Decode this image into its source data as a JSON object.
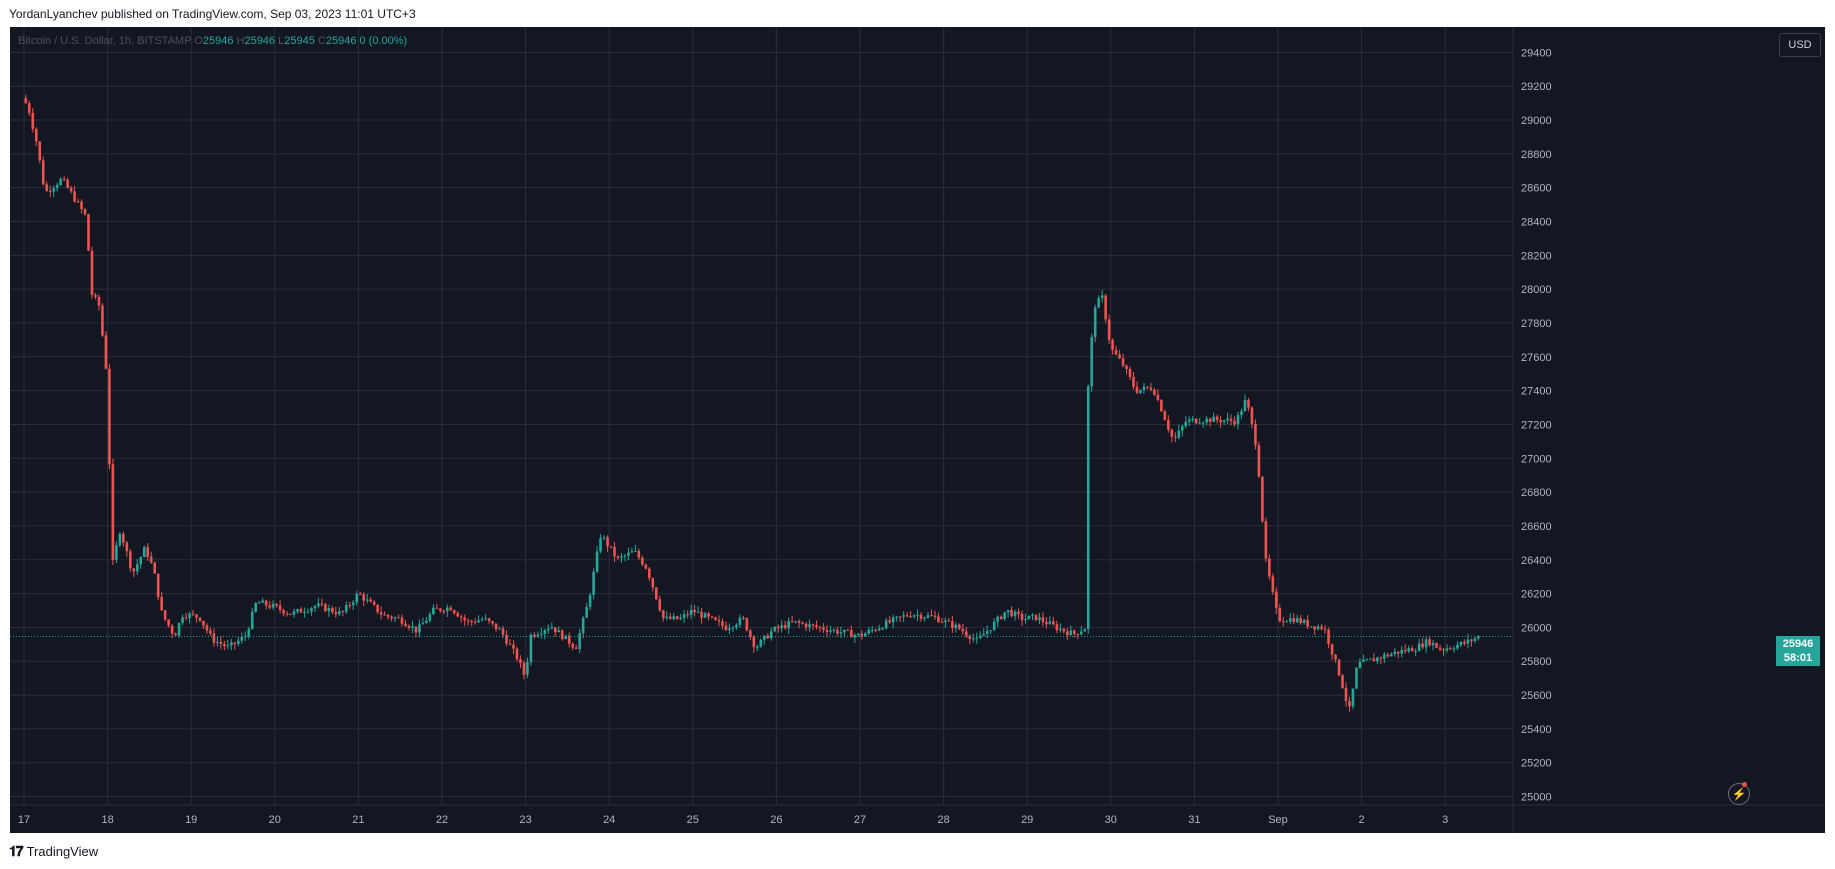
{
  "header": {
    "publish_line": "YordanLyanchev published on TradingView.com, Sep 03, 2023 11:01 UTC+3"
  },
  "legend": {
    "symbol": "Bitcoin / U.S. Dollar, 1h, BITSTAMP",
    "open_label": "O",
    "open": "25946",
    "high_label": "H",
    "high": "25946",
    "low_label": "L",
    "low": "25945",
    "close_label": "C",
    "close": "25946",
    "change": "0 (0.00%)"
  },
  "currency_button": "USD",
  "price_tag": {
    "price": "25946",
    "countdown": "58:01"
  },
  "footer": {
    "brand": "TradingView"
  },
  "colors": {
    "background": "#131722",
    "grid": "#2a2e39",
    "bull": "#26a69a",
    "bear": "#ef5350",
    "axis_text": "#b2b5be"
  },
  "chart_data": {
    "type": "candlestick",
    "title": "Bitcoin / U.S. Dollar, 1h, BITSTAMP",
    "xlabel": "",
    "ylabel": "",
    "ylim": [
      24950,
      29550
    ],
    "y_ticks": [
      25000,
      25200,
      25400,
      25600,
      25800,
      26000,
      26200,
      26400,
      26600,
      26800,
      27000,
      27200,
      27400,
      27600,
      27800,
      28000,
      28200,
      28400,
      28600,
      28800,
      29000,
      29200,
      29400
    ],
    "x_ticks": [
      "17",
      "18",
      "19",
      "20",
      "21",
      "22",
      "23",
      "24",
      "25",
      "26",
      "27",
      "28",
      "29",
      "30",
      "31",
      "Sep",
      "2",
      "3"
    ],
    "grid": true,
    "last_price": 25946,
    "price_path": [
      [
        16.98,
        29130
      ],
      [
        17.05,
        29080
      ],
      [
        17.15,
        28870
      ],
      [
        17.25,
        28570
      ],
      [
        17.45,
        28650
      ],
      [
        17.6,
        28540
      ],
      [
        17.75,
        28420
      ],
      [
        17.8,
        27980
      ],
      [
        17.9,
        27900
      ],
      [
        18.0,
        27450
      ],
      [
        18.05,
        26350
      ],
      [
        18.15,
        26580
      ],
      [
        18.3,
        26320
      ],
      [
        18.45,
        26470
      ],
      [
        18.55,
        26340
      ],
      [
        18.65,
        26080
      ],
      [
        18.8,
        25950
      ],
      [
        18.9,
        26080
      ],
      [
        19.1,
        26060
      ],
      [
        19.25,
        25930
      ],
      [
        19.45,
        25880
      ],
      [
        19.65,
        25950
      ],
      [
        19.78,
        26150
      ],
      [
        20.0,
        26120
      ],
      [
        20.2,
        26080
      ],
      [
        20.5,
        26130
      ],
      [
        20.8,
        26080
      ],
      [
        21.0,
        26200
      ],
      [
        21.3,
        26070
      ],
      [
        21.5,
        26050
      ],
      [
        21.7,
        25980
      ],
      [
        21.9,
        26100
      ],
      [
        22.1,
        26120
      ],
      [
        22.3,
        26030
      ],
      [
        22.5,
        26050
      ],
      [
        22.7,
        25980
      ],
      [
        22.9,
        25820
      ],
      [
        23.0,
        25700
      ],
      [
        23.05,
        25950
      ],
      [
        23.3,
        26010
      ],
      [
        23.6,
        25880
      ],
      [
        23.75,
        26150
      ],
      [
        23.9,
        26550
      ],
      [
        24.1,
        26400
      ],
      [
        24.3,
        26450
      ],
      [
        24.45,
        26350
      ],
      [
        24.65,
        26050
      ],
      [
        24.85,
        26050
      ],
      [
        25.0,
        26100
      ],
      [
        25.2,
        26050
      ],
      [
        25.4,
        26000
      ],
      [
        25.6,
        26050
      ],
      [
        25.75,
        25880
      ],
      [
        25.95,
        25980
      ],
      [
        26.2,
        26030
      ],
      [
        26.5,
        26000
      ],
      [
        26.8,
        25970
      ],
      [
        27.0,
        25950
      ],
      [
        27.3,
        26020
      ],
      [
        27.6,
        26080
      ],
      [
        27.9,
        26060
      ],
      [
        28.2,
        25990
      ],
      [
        28.4,
        25920
      ],
      [
        28.6,
        26020
      ],
      [
        28.75,
        26100
      ],
      [
        28.95,
        26050
      ],
      [
        29.1,
        26060
      ],
      [
        29.35,
        26000
      ],
      [
        29.55,
        25960
      ],
      [
        29.7,
        26000
      ],
      [
        29.72,
        27350
      ],
      [
        29.8,
        27900
      ],
      [
        29.9,
        27950
      ],
      [
        30.0,
        27650
      ],
      [
        30.15,
        27550
      ],
      [
        30.3,
        27400
      ],
      [
        30.5,
        27420
      ],
      [
        30.6,
        27300
      ],
      [
        30.75,
        27100
      ],
      [
        30.9,
        27220
      ],
      [
        31.2,
        27230
      ],
      [
        31.5,
        27220
      ],
      [
        31.62,
        27350
      ],
      [
        31.75,
        27050
      ],
      [
        31.85,
        26400
      ],
      [
        32.0,
        26050
      ],
      [
        32.2,
        26050
      ],
      [
        32.4,
        26010
      ],
      [
        32.55,
        26000
      ],
      [
        32.75,
        25700
      ],
      [
        32.85,
        25500
      ],
      [
        32.95,
        25780
      ],
      [
        33.2,
        25820
      ],
      [
        33.4,
        25850
      ],
      [
        33.65,
        25880
      ],
      [
        33.8,
        25920
      ],
      [
        33.95,
        25870
      ],
      [
        34.1,
        25890
      ],
      [
        34.25,
        25910
      ],
      [
        34.4,
        25946
      ]
    ]
  }
}
